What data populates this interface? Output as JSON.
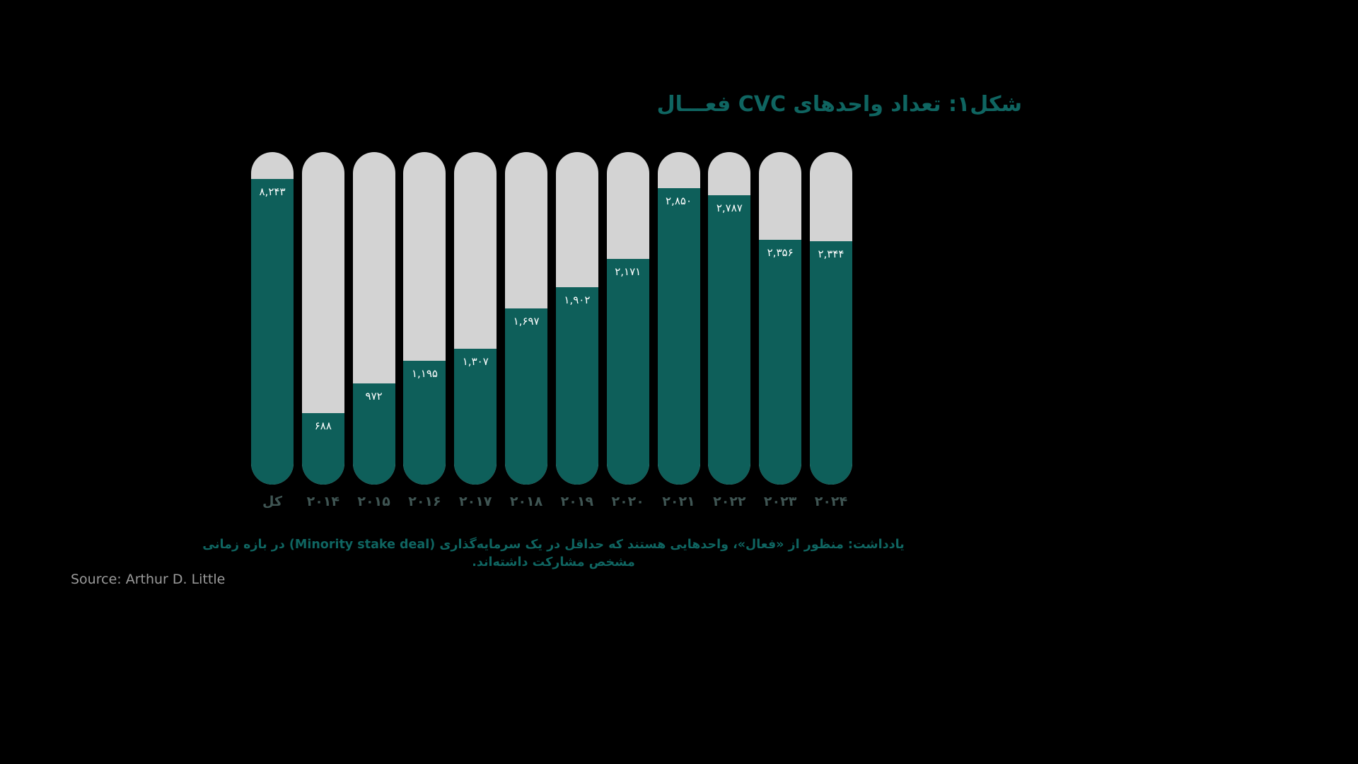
{
  "title": "شکل۱: تعداد واحدهای CVC فعـــال",
  "note": "یادداشت: منظور از «فعال»، واحدهایی هستند که حداقل در یک سرمایه‌گذاری (Minority stake deal) در بازه زمانی مشخص مشارکت داشته‌اند.",
  "source": "Source: Arthur D. Little",
  "colors": {
    "bg": "#000000",
    "accent_teal": "#0E5F5A",
    "track_gray": "#D3D3D3",
    "title_teal": "#0F6561",
    "axis_label": "#3F5553",
    "value_label": "#FFFFFF",
    "source_gray": "#9B9B9B"
  },
  "chart_data": {
    "type": "bar",
    "title": "شکل۱: تعداد واحدهای CVC فعـــال",
    "categories": [
      "کل",
      "۲۰۱۴",
      "۲۰۱۵",
      "۲۰۱۶",
      "۲۰۱۷",
      "۲۰۱۸",
      "۲۰۱۹",
      "۲۰۲۰",
      "۲۰۲۱",
      "۲۰۲۲",
      "۲۰۲۳",
      "۲۰۲۴"
    ],
    "values": [
      8243,
      688,
      972,
      1195,
      1307,
      1697,
      1902,
      2171,
      2850,
      2787,
      2356,
      2344
    ],
    "value_labels": [
      "۸,۲۴۳",
      "۶۸۸",
      "۹۷۲",
      "۱,۱۹۵",
      "۱,۳۰۷",
      "۱,۶۹۷",
      "۱,۹۰۲",
      "۲,۱۷۱",
      "۲,۸۵۰",
      "۲,۷۸۷",
      "۲,۳۵۶",
      "۲,۳۴۴"
    ],
    "xlabel": "",
    "ylabel": "",
    "ylim": [
      0,
      3200
    ],
    "total_bar_display_cap": 0.92,
    "grid": false,
    "legend": false,
    "note": "First bar is the cumulative total; its fill is visually clamped, other bars are proportional to values."
  }
}
